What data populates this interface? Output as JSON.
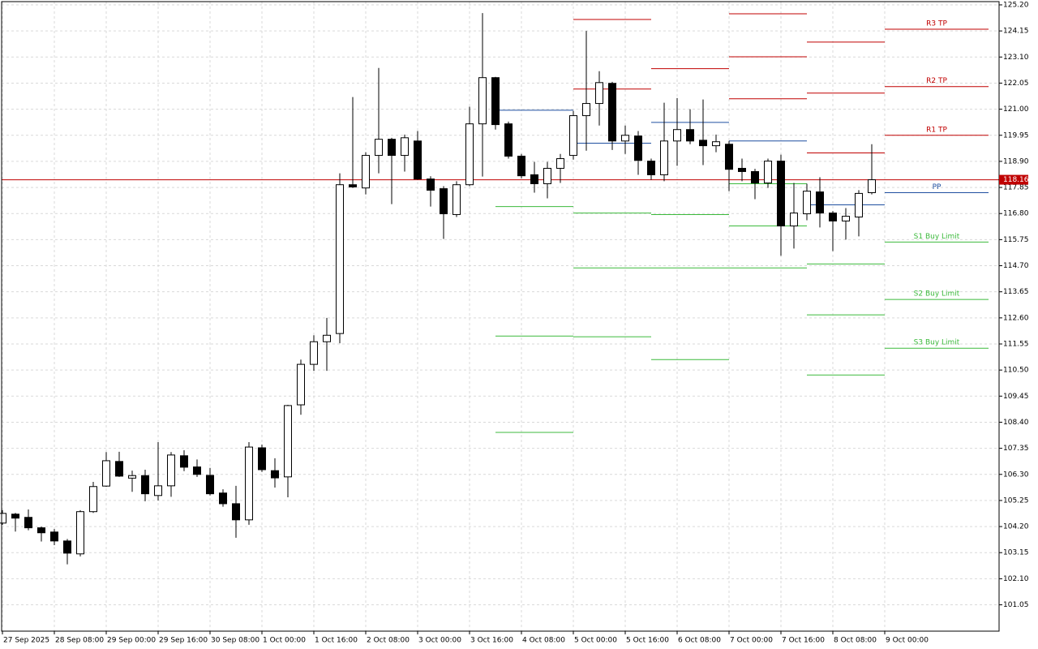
{
  "chart_data": {
    "type": "candlestick",
    "categories": [
      "27 Sep 2025",
      null,
      null,
      null,
      "28 Sep 08:00",
      null,
      null,
      null,
      "29 Sep 00:00",
      null,
      null,
      null,
      "29 Sep 16:00",
      null,
      null,
      null,
      "30 Sep 08:00",
      null,
      null,
      null,
      "1 Oct 00:00",
      null,
      null,
      null,
      "1 Oct 16:00",
      null,
      null,
      null,
      "2 Oct 08:00",
      null,
      null,
      null,
      "3 Oct 00:00",
      null,
      null,
      null,
      "3 Oct 16:00",
      null,
      null,
      null,
      "4 Oct 08:00",
      null,
      null,
      null,
      "5 Oct 00:00",
      null,
      null,
      null,
      "5 Oct 16:00",
      null,
      null,
      null,
      "6 Oct 08:00",
      null,
      null,
      null,
      "7 Oct 00:00",
      null,
      null,
      null,
      "7 Oct 16:00",
      null,
      null,
      null,
      "8 Oct 08:00",
      null,
      null,
      null,
      "9 Oct 00:00"
    ],
    "open": [
      104.34,
      104.7,
      104.57,
      104.15,
      103.98,
      103.62,
      103.1,
      104.8,
      105.83,
      106.82,
      106.15,
      106.25,
      105.45,
      105.84,
      107.05,
      106.6,
      106.26,
      105.55,
      105.12,
      104.47,
      107.37,
      106.45,
      106.2,
      109.1,
      110.73,
      111.64,
      111.97,
      117.96,
      117.83,
      119.14,
      119.79,
      119.14,
      119.72,
      118.19,
      117.8,
      116.76,
      117.96,
      120.41,
      122.27,
      120.41,
      119.11,
      118.36,
      118.0,
      118.62,
      119.14,
      120.74,
      121.23,
      122.04,
      119.72,
      119.92,
      118.91,
      118.36,
      119.72,
      120.18,
      119.75,
      119.53,
      119.59,
      118.62,
      118.49,
      118.03,
      118.91,
      116.3,
      116.79,
      117.67,
      116.82,
      116.5,
      116.66,
      117.64,
      null
    ],
    "high": [
      104.86,
      104.75,
      104.89,
      104.2,
      104.1,
      103.7,
      104.86,
      106.0,
      107.2,
      107.21,
      106.45,
      106.49,
      107.6,
      107.2,
      107.27,
      106.9,
      106.56,
      105.7,
      105.84,
      107.6,
      107.5,
      106.95,
      109.1,
      110.92,
      111.9,
      112.6,
      118.42,
      121.49,
      119.27,
      122.66,
      119.85,
      119.98,
      120.12,
      118.3,
      117.9,
      118.1,
      121.1,
      124.87,
      122.3,
      120.5,
      119.2,
      118.88,
      118.88,
      119.2,
      120.93,
      124.15,
      122.53,
      122.1,
      120.34,
      120.12,
      119.01,
      121.26,
      121.45,
      121.0,
      121.39,
      119.98,
      119.72,
      119.01,
      118.6,
      119.01,
      119.17,
      118.03,
      118.0,
      118.26,
      116.9,
      117.02,
      117.74,
      119.59,
      null
    ],
    "low": [
      104.27,
      104.0,
      104.05,
      103.6,
      103.45,
      102.68,
      103.0,
      104.75,
      105.8,
      106.2,
      105.6,
      105.22,
      105.25,
      105.4,
      106.43,
      106.2,
      105.45,
      105.0,
      103.75,
      104.27,
      106.4,
      105.77,
      105.38,
      108.7,
      110.47,
      110.47,
      111.58,
      117.83,
      117.57,
      118.42,
      117.18,
      118.49,
      118.16,
      117.08,
      115.78,
      116.66,
      117.9,
      118.29,
      120.18,
      119.01,
      118.22,
      117.64,
      117.41,
      118.03,
      118.97,
      119.33,
      120.34,
      119.36,
      119.2,
      118.36,
      118.16,
      118.1,
      118.72,
      119.59,
      118.75,
      119.27,
      117.7,
      118.1,
      117.38,
      117.83,
      115.1,
      115.39,
      116.53,
      116.24,
      115.29,
      115.75,
      115.88,
      117.57,
      null
    ],
    "close": [
      104.73,
      104.54,
      104.15,
      103.95,
      103.62,
      103.13,
      104.8,
      105.81,
      106.85,
      106.23,
      106.25,
      105.52,
      105.84,
      107.08,
      106.59,
      106.3,
      105.52,
      105.12,
      104.47,
      107.4,
      106.49,
      106.16,
      109.07,
      110.73,
      111.64,
      111.9,
      117.96,
      117.87,
      119.14,
      119.79,
      119.14,
      119.85,
      118.19,
      117.74,
      116.79,
      117.96,
      120.41,
      122.27,
      120.38,
      119.11,
      118.32,
      118.0,
      118.62,
      119.01,
      120.74,
      121.23,
      122.07,
      119.72,
      119.95,
      118.94,
      118.36,
      119.72,
      120.18,
      119.72,
      119.53,
      119.69,
      118.58,
      118.49,
      118.03,
      118.91,
      116.3,
      116.82,
      117.7,
      116.82,
      116.5,
      116.69,
      117.61,
      118.16,
      null
    ],
    "up_color": "#ffffff",
    "down_color": "#000000",
    "wick_color": "#000000",
    "ylim": [
      99.99,
      125.33
    ],
    "yticks": [
      {
        "value": 125.2,
        "label": "125.20"
      },
      {
        "value": 124.15,
        "label": "124.15"
      },
      {
        "value": 123.1,
        "label": "123.10"
      },
      {
        "value": 122.05,
        "label": "122.05"
      },
      {
        "value": 121.0,
        "label": "121.00"
      },
      {
        "value": 119.95,
        "label": "119.95"
      },
      {
        "value": 118.9,
        "label": "118.90"
      },
      {
        "value": 117.85,
        "label": "117.85"
      },
      {
        "value": 116.8,
        "label": "116.80"
      },
      {
        "value": 115.75,
        "label": "115.75"
      },
      {
        "value": 114.7,
        "label": "114.70"
      },
      {
        "value": 113.65,
        "label": "113.65"
      },
      {
        "value": 112.6,
        "label": "112.60"
      },
      {
        "value": 111.55,
        "label": "111.55"
      },
      {
        "value": 110.5,
        "label": "110.50"
      },
      {
        "value": 109.45,
        "label": "109.45"
      },
      {
        "value": 108.4,
        "label": "108.40"
      },
      {
        "value": 107.35,
        "label": "107.35"
      },
      {
        "value": 106.3,
        "label": "106.30"
      },
      {
        "value": 105.25,
        "label": "105.25"
      },
      {
        "value": 104.2,
        "label": "104.20"
      },
      {
        "value": 103.15,
        "label": "103.15"
      },
      {
        "value": 102.1,
        "label": "102.10"
      },
      {
        "value": 101.05,
        "label": "101.05"
      }
    ],
    "grid": true,
    "last_price": 118.16,
    "last_price_color": "#c00000",
    "levels": [
      {
        "name": "R3 TP",
        "color": "#c00000"
      },
      {
        "name": "R2 TP",
        "color": "#c00000"
      },
      {
        "name": "R1 TP",
        "color": "#c00000"
      },
      {
        "name": "PP",
        "color": "#1f4fa0"
      },
      {
        "name": "S1 Buy Limit",
        "color": "#3cba3c"
      },
      {
        "name": "S2 Buy Limit",
        "color": "#3cba3c"
      },
      {
        "name": "S3 Buy Limit",
        "color": "#3cba3c"
      }
    ],
    "periods": [
      {
        "start": 38,
        "end": 44,
        "values": [
          null,
          null,
          null,
          120.96,
          117.08,
          111.87,
          107.99
        ]
      },
      {
        "start": 44,
        "end": 50,
        "values": [
          null,
          124.61,
          121.81,
          119.63,
          116.82,
          114.61,
          111.84
        ]
      },
      {
        "start": 50,
        "end": 56,
        "values": [
          null,
          null,
          122.63,
          120.47,
          116.76,
          114.61,
          110.92
        ]
      },
      {
        "start": 56,
        "end": 62,
        "values": [
          124.84,
          123.11,
          121.42,
          119.72,
          118.0,
          116.3,
          114.61
        ]
      },
      {
        "start": 62,
        "end": 68,
        "values": [
          123.7,
          121.65,
          119.24,
          117.15,
          114.77,
          112.72,
          110.3
        ]
      },
      {
        "start": 68,
        "end": 76,
        "values": [
          124.22,
          121.91,
          119.95,
          117.64,
          115.65,
          113.34,
          111.38
        ]
      }
    ]
  }
}
